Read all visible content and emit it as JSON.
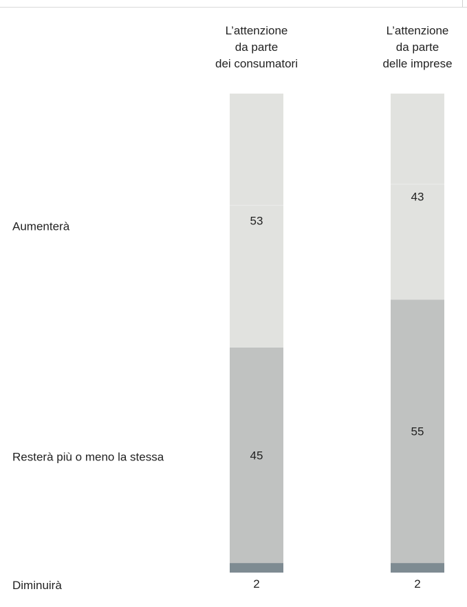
{
  "chart_data": {
    "type": "bar",
    "stacked": true,
    "orientation": "vertical",
    "categories": [
      [
        "L’attenzione",
        "da parte",
        "dei consumatori"
      ],
      [
        "L’attenzione",
        "da parte",
        "delle imprese"
      ]
    ],
    "series": [
      {
        "name": "Aumenterà",
        "values": [
          53,
          43
        ],
        "color": "#e1e2df"
      },
      {
        "name": "Resterà più o meno la stessa",
        "values": [
          45,
          55
        ],
        "color": "#c0c2c1"
      },
      {
        "name": "Diminuirà",
        "values": [
          2,
          2
        ],
        "color": "#7e8b92"
      }
    ],
    "ylim": [
      0,
      100
    ],
    "grid": false,
    "legend": "row labels on left"
  }
}
